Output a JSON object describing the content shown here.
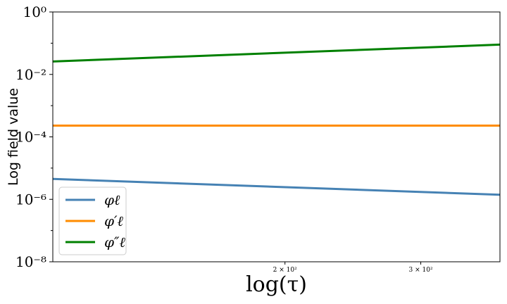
{
  "chart_data": {
    "type": "line",
    "xlabel": "log(τ)",
    "ylabel": "Log field value",
    "xscale": "log",
    "yscale": "log",
    "xlim": [
      100,
      380
    ],
    "ylim": [
      1e-08,
      1
    ],
    "xticks": [
      {
        "value": 200,
        "label": "2 × 10²"
      },
      {
        "value": 300,
        "label": "3 × 10²"
      }
    ],
    "yticks": [
      {
        "value": 1,
        "label": "10⁰"
      },
      {
        "value": 0.01,
        "label": "10⁻²"
      },
      {
        "value": 0.0001,
        "label": "10⁻⁴"
      },
      {
        "value": 1e-06,
        "label": "10⁻⁶"
      },
      {
        "value": 1e-08,
        "label": "10⁻⁸"
      }
    ],
    "grid": false,
    "legend_position": "lower-left",
    "series": [
      {
        "name": "φℓ",
        "color": "#4682b4",
        "x": [
          100,
          380
        ],
        "y": [
          4.5e-06,
          1.4e-06
        ]
      },
      {
        "name": "φ′ℓ",
        "color": "#ff8c00",
        "x": [
          100,
          380
        ],
        "y": [
          0.00023,
          0.00023
        ]
      },
      {
        "name": "φ″ℓ",
        "color": "#008000",
        "x": [
          100,
          380
        ],
        "y": [
          0.026,
          0.09
        ]
      }
    ]
  }
}
